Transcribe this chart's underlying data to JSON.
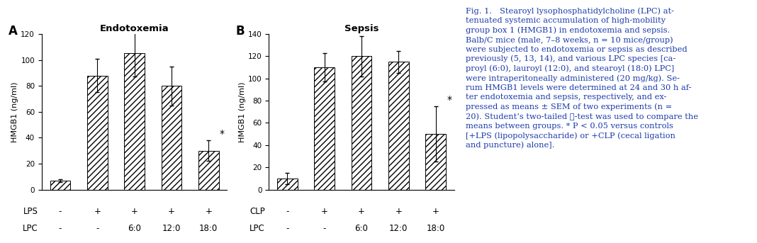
{
  "panel_A": {
    "title": "Endotoxemia",
    "row1_label": "LPS",
    "row2_label": "LPC",
    "row1_vals": [
      "-",
      "+",
      "+",
      "+",
      "+"
    ],
    "row2_vals": [
      "-",
      "-",
      "6:0",
      "12:0",
      "18:0"
    ],
    "bar_heights": [
      7,
      88,
      105,
      80,
      30
    ],
    "bar_errors": [
      1,
      13,
      18,
      15,
      8
    ],
    "ylim": [
      0,
      120
    ],
    "yticks": [
      0,
      20,
      40,
      60,
      80,
      100,
      120
    ],
    "ylabel": "HMGB1 (ng/ml)",
    "star_bar_idx": 4,
    "panel_label": "A"
  },
  "panel_B": {
    "title": "Sepsis",
    "row1_label": "CLP",
    "row2_label": "LPC",
    "row1_vals": [
      "-",
      "+",
      "+",
      "+",
      "+"
    ],
    "row2_vals": [
      "-",
      "-",
      "6:0",
      "12:0",
      "18:0"
    ],
    "bar_heights": [
      10,
      110,
      120,
      115,
      50
    ],
    "bar_errors": [
      5,
      13,
      18,
      10,
      25
    ],
    "ylim": [
      0,
      140
    ],
    "yticks": [
      0,
      20,
      40,
      60,
      80,
      100,
      120,
      140
    ],
    "ylabel": "HMGB1 (ng/ml)",
    "star_bar_idx": 4,
    "panel_label": "B"
  },
  "caption_color": "#1a3aaa",
  "hatch_pattern": "////",
  "bar_width": 0.55,
  "fig_bg": "#ffffff"
}
